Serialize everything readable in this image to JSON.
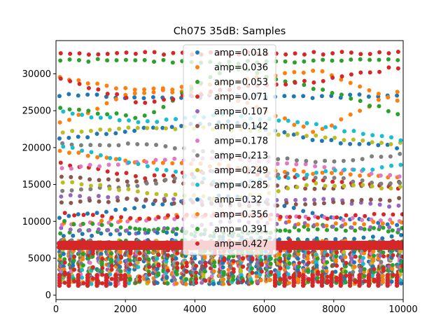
{
  "chart_data": {
    "type": "scatter",
    "title": "Ch075 35dB: Samples",
    "xlabel": "",
    "ylabel": "",
    "xlim": [
      0,
      10000
    ],
    "ylim": [
      -600,
      34500
    ],
    "xticks": [
      0,
      2000,
      4000,
      6000,
      8000,
      10000
    ],
    "xtick_labels": [
      "0",
      "2000",
      "4000",
      "6000",
      "8000",
      "10000"
    ],
    "yticks": [
      0,
      5000,
      10000,
      15000,
      20000,
      25000,
      30000
    ],
    "ytick_labels": [
      "0",
      "5000",
      "10000",
      "15000",
      "20000",
      "25000",
      "30000"
    ],
    "grid": false,
    "legend_position": "top-center",
    "x_step": 270,
    "series": [
      {
        "name": "amp=0.018",
        "color": "#1f77b4",
        "center": 4600,
        "spread": 2200,
        "tracks": [
          [
            27200,
            26800,
            27000,
            26900,
            27100
          ],
          [
            21000,
            22500,
            23500,
            21000,
            20000
          ],
          [
            10500,
            12000,
            13500,
            11000,
            9500
          ]
        ]
      },
      {
        "name": "amp=0.036",
        "color": "#ff7f0e",
        "center": 4400,
        "spread": 2400,
        "tracks": [
          [
            29500,
            27500,
            29000,
            30500,
            26000
          ],
          [
            23000,
            28000,
            27000,
            22000,
            28000
          ],
          [
            19500,
            18000,
            17500,
            16500,
            16000
          ]
        ]
      },
      {
        "name": "amp=0.053",
        "color": "#2ca02c",
        "center": 4200,
        "spread": 2600,
        "tracks": [
          [
            31800,
            31800,
            31500,
            31800,
            31900
          ],
          [
            25500,
            24000,
            31000,
            28000,
            24500
          ],
          [
            8500,
            9000,
            8000,
            9500,
            8500
          ]
        ]
      },
      {
        "name": "amp=0.071",
        "color": "#d62728",
        "center": 7000,
        "spread": 5800,
        "tracks": [
          [
            32800,
            32800,
            32800,
            32800,
            32800
          ],
          [
            29500,
            26000,
            28000,
            29000,
            31000
          ],
          [
            18000,
            16000,
            17000,
            15500,
            14500
          ]
        ]
      },
      {
        "name": "amp=0.107",
        "color": "#9467bd",
        "center": 6500,
        "spread": 3000,
        "tracks": [
          [
            13500,
            13000,
            12500,
            13000,
            12000
          ],
          [
            9000,
            8500,
            10000,
            9500,
            9000
          ]
        ]
      },
      {
        "name": "amp=0.142",
        "color": "#8c564b",
        "center": 6200,
        "spread": 3000,
        "tracks": [
          [
            16000,
            15500,
            15000,
            14500,
            15200
          ],
          [
            12500,
            13000,
            12000,
            12500,
            13000
          ]
        ]
      },
      {
        "name": "amp=0.178",
        "color": "#e377c2",
        "center": 6300,
        "spread": 3200,
        "tracks": [
          [
            17000,
            18200,
            18500,
            17500,
            16000
          ],
          [
            9500,
            10000,
            11000,
            10500,
            10000
          ]
        ]
      },
      {
        "name": "amp=0.213",
        "color": "#7f7f7f",
        "center": 6000,
        "spread": 3000,
        "tracks": [
          [
            20500,
            20500,
            19000,
            18000,
            19000
          ],
          [
            14000,
            15000,
            17000,
            16000,
            15000
          ]
        ]
      },
      {
        "name": "amp=0.249",
        "color": "#bcbd22",
        "center": 5000,
        "spread": 3200,
        "tracks": [
          [
            22000,
            22800,
            22500,
            21500,
            20500
          ],
          [
            15500,
            14000,
            13000,
            15000,
            14500
          ]
        ]
      },
      {
        "name": "amp=0.285",
        "color": "#17becf",
        "center": 4000,
        "spread": 3200,
        "tracks": [
          [
            24800,
            23500,
            24500,
            23000,
            21000
          ],
          [
            20500,
            17500,
            15000,
            16500,
            17500
          ]
        ]
      },
      {
        "name": "amp=0.32",
        "color": "#1f77b4",
        "center": 4500,
        "spread": 2600,
        "tracks": [
          [
            8000,
            8500,
            8000,
            7500,
            8000
          ]
        ]
      },
      {
        "name": "amp=0.356",
        "color": "#ff7f0e",
        "center": 4200,
        "spread": 3000,
        "tracks": [
          [
            9500,
            10500,
            11000,
            9500,
            10000
          ]
        ]
      },
      {
        "name": "amp=0.391",
        "color": "#2ca02c",
        "center": 3500,
        "spread": 3300,
        "tracks": [
          [
            10000,
            9000,
            8500,
            8800,
            9000
          ]
        ]
      },
      {
        "name": "amp=0.427",
        "color": "#d62728",
        "center": 6900,
        "spread": 5700,
        "tracks": [
          [
            11000,
            10500,
            11000,
            10500,
            11000
          ]
        ]
      }
    ]
  }
}
